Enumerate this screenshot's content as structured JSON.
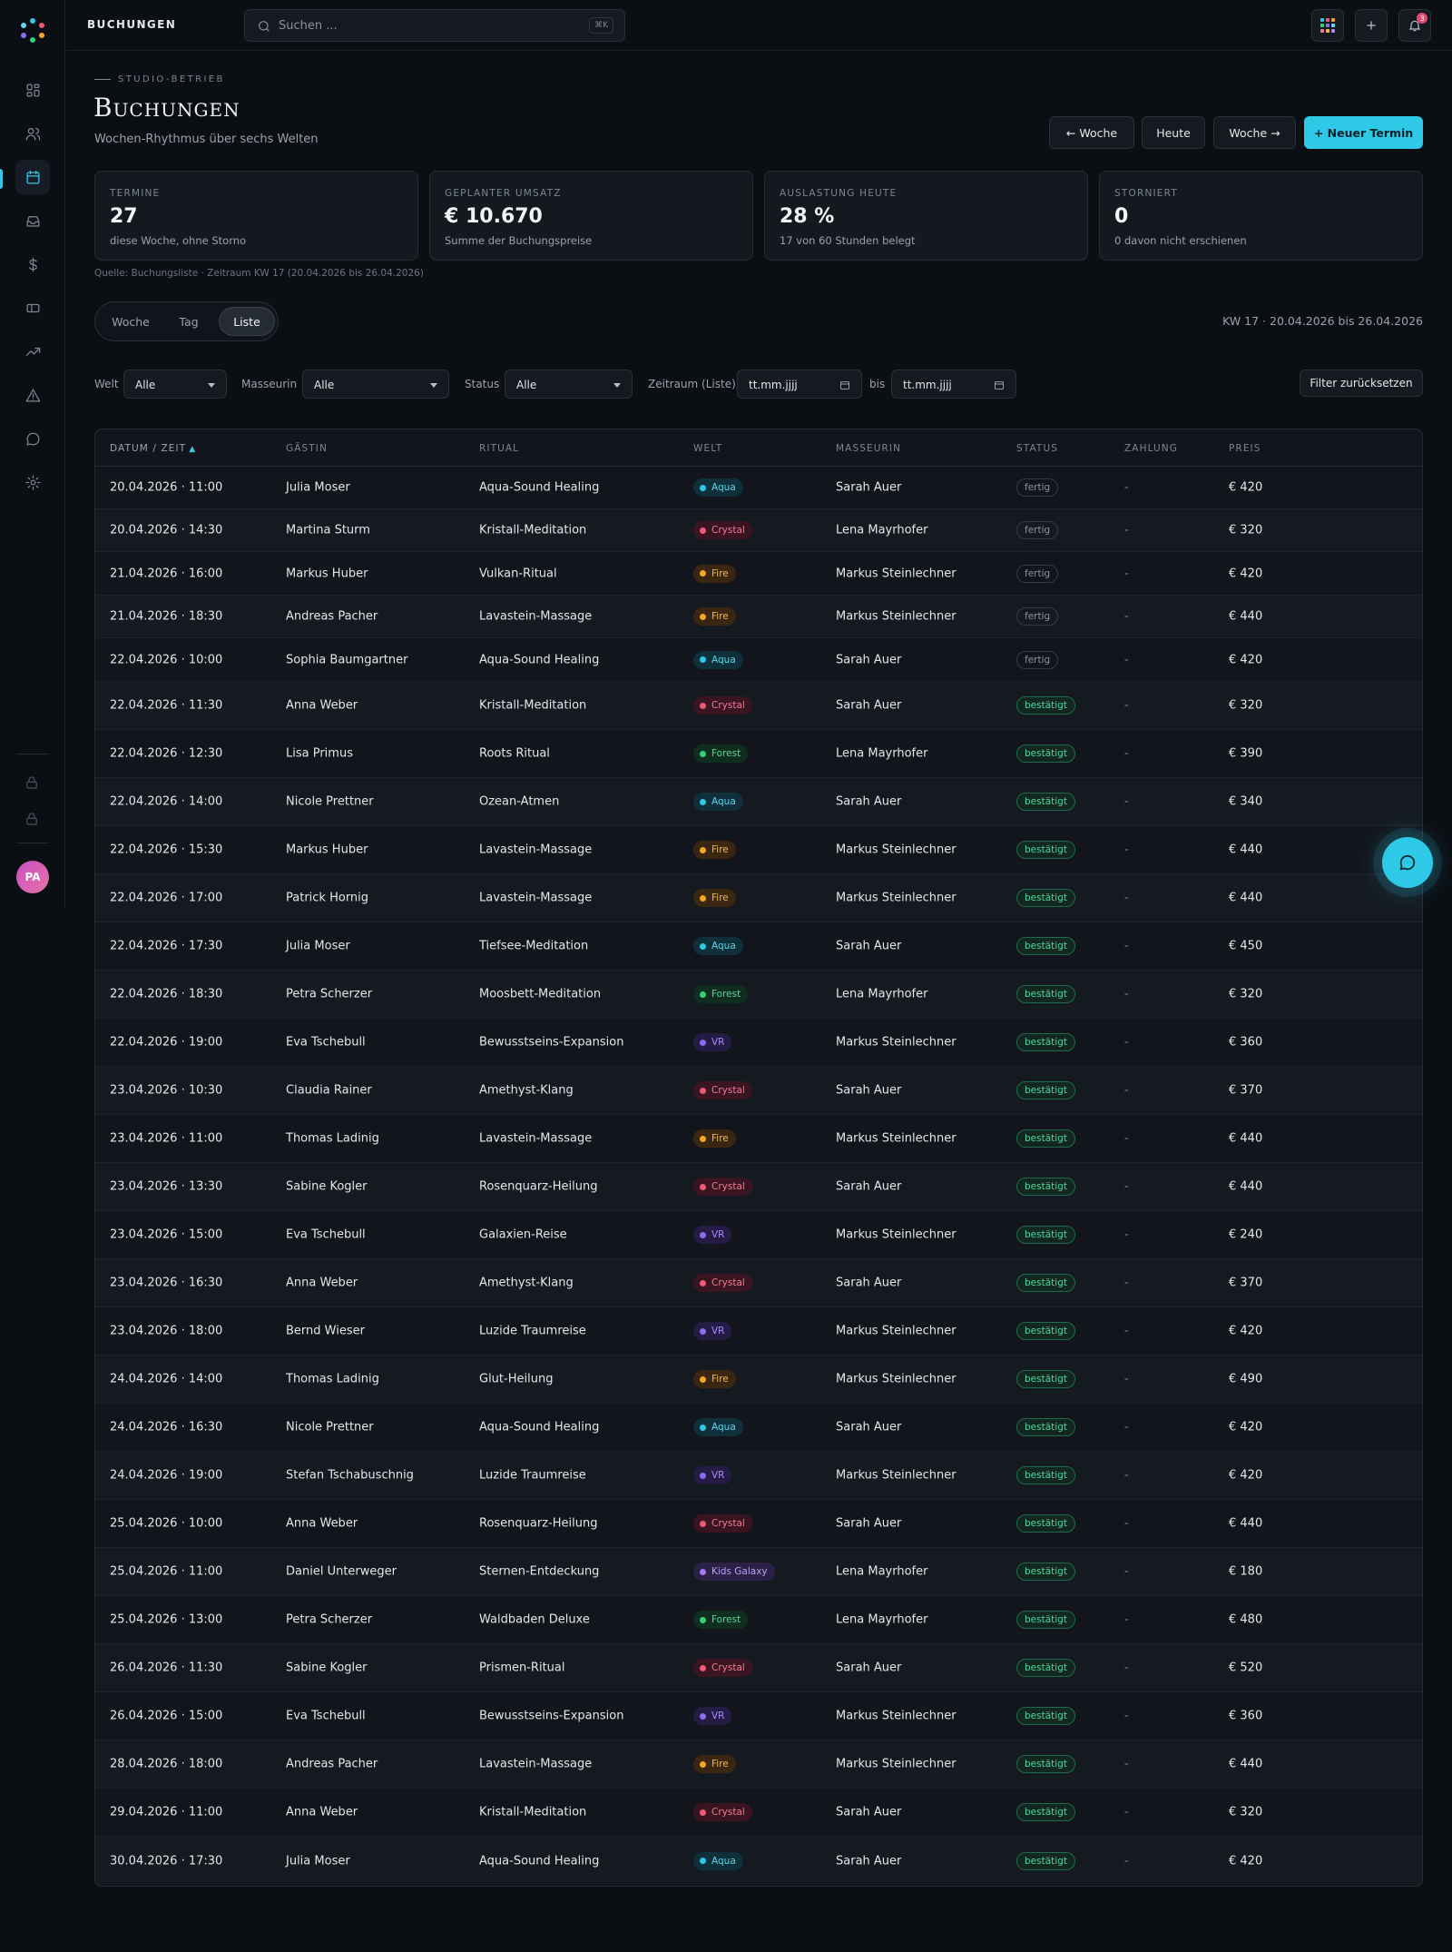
{
  "topbar": {
    "app_title": "BUCHUNGEN",
    "search_placeholder": "Suchen ...",
    "search_shortcut": "⌘K",
    "notification_count": "3"
  },
  "sidebar": {
    "items": [
      {
        "icon": "dashboard-icon"
      },
      {
        "icon": "users-icon"
      },
      {
        "icon": "calendar-icon",
        "active": true
      },
      {
        "icon": "inbox-icon"
      },
      {
        "icon": "dollar-icon"
      },
      {
        "icon": "ticket-icon"
      },
      {
        "icon": "trending-up-icon"
      },
      {
        "icon": "alert-triangle-icon"
      },
      {
        "icon": "message-circle-icon"
      },
      {
        "icon": "gear-icon"
      }
    ],
    "avatar_initials": "PA"
  },
  "header": {
    "eyebrow": "STUDIO-BETRIEB",
    "title": "Buchungen",
    "subtitle": "Wochen-Rhythmus über sechs Welten",
    "buttons": {
      "prev_week": "← Woche",
      "today": "Heute",
      "next_week": "Woche →",
      "new_appointment": "+ Neuer Termin"
    }
  },
  "kpis": [
    {
      "label": "TERMINE",
      "value": "27",
      "sub": "diese Woche, ohne Storno"
    },
    {
      "label": "GEPLANTER UMSATZ",
      "value": "€ 10.670",
      "sub": "Summe der Buchungspreise"
    },
    {
      "label": "AUSLASTUNG HEUTE",
      "value": "28 %",
      "sub": "17 von 60 Stunden belegt"
    },
    {
      "label": "STORNIERT",
      "value": "0",
      "sub": "0 davon nicht erschienen"
    }
  ],
  "source_note": "Quelle: Buchungsliste · Zeitraum KW 17 (20.04.2026 bis 26.04.2026)",
  "view_tabs": {
    "week": "Woche",
    "day": "Tag",
    "list": "Liste",
    "active": "list"
  },
  "range_label": "KW 17 · 20.04.2026 bis 26.04.2026",
  "filters": {
    "welt_label": "Welt",
    "welt_value": "Alle",
    "masseurin_label": "Masseurin",
    "masseurin_value": "Alle",
    "status_label": "Status",
    "status_value": "Alle",
    "zeitraum_label": "Zeitraum (Liste)",
    "from_value": "tt.mm.jjjj",
    "bis_label": "bis",
    "to_value": "tt.mm.jjjj",
    "reset_label": "Filter zurücksetzen"
  },
  "colors": {
    "accent": "#2ec9e6",
    "worlds": {
      "Aqua": {
        "dot": "#2ec9e6",
        "bg": "#0f2f3a",
        "fg": "#5fd8f0"
      },
      "Crystal": {
        "dot": "#f0587a",
        "bg": "#3a1521",
        "fg": "#f07a96"
      },
      "Fire": {
        "dot": "#f5a623",
        "bg": "#3a2611",
        "fg": "#f5b64a"
      },
      "Forest": {
        "dot": "#33d17a",
        "bg": "#0f2e1f",
        "fg": "#56d992"
      },
      "VR": {
        "dot": "#8b6cf0",
        "bg": "#241c44",
        "fg": "#a58df5"
      },
      "Kids Galaxy": {
        "dot": "#a57bf0",
        "bg": "#2b2046",
        "fg": "#bfa1f7"
      }
    }
  },
  "table": {
    "columns": [
      "DATUM / ZEIT",
      "GÄSTIN",
      "RITUAL",
      "WELT",
      "MASSEURIN",
      "STATUS",
      "ZAHLUNG",
      "PREIS"
    ],
    "sort_indicator": "▲",
    "rows": [
      {
        "datetime": "20.04.2026 · 11:00",
        "guest": "Julia Moser",
        "ritual": "Aqua-Sound Healing",
        "world": "Aqua",
        "therapist": "Sarah Auer",
        "status": "fertig",
        "payment": "-",
        "price": "€ 420"
      },
      {
        "datetime": "20.04.2026 · 14:30",
        "guest": "Martina Sturm",
        "ritual": "Kristall-Meditation",
        "world": "Crystal",
        "therapist": "Lena Mayrhofer",
        "status": "fertig",
        "payment": "-",
        "price": "€ 320"
      },
      {
        "datetime": "21.04.2026 · 16:00",
        "guest": "Markus Huber",
        "ritual": "Vulkan-Ritual",
        "world": "Fire",
        "therapist": "Markus Steinlechner",
        "status": "fertig",
        "payment": "-",
        "price": "€ 420"
      },
      {
        "datetime": "21.04.2026 · 18:30",
        "guest": "Andreas Pacher",
        "ritual": "Lavastein-Massage",
        "world": "Fire",
        "therapist": "Markus Steinlechner",
        "status": "fertig",
        "payment": "-",
        "price": "€ 440"
      },
      {
        "datetime": "22.04.2026 · 10:00",
        "guest": "Sophia Baumgartner",
        "ritual": "Aqua-Sound Healing",
        "world": "Aqua",
        "therapist": "Sarah Auer",
        "status": "fertig",
        "payment": "-",
        "price": "€ 420"
      },
      {
        "datetime": "22.04.2026 · 11:30",
        "guest": "Anna Weber",
        "ritual": "Kristall-Meditation",
        "world": "Crystal",
        "therapist": "Sarah Auer",
        "status": "bestätigt",
        "payment": "-",
        "price": "€ 320"
      },
      {
        "datetime": "22.04.2026 · 12:30",
        "guest": "Lisa Primus",
        "ritual": "Roots Ritual",
        "world": "Forest",
        "therapist": "Lena Mayrhofer",
        "status": "bestätigt",
        "payment": "-",
        "price": "€ 390"
      },
      {
        "datetime": "22.04.2026 · 14:00",
        "guest": "Nicole Prettner",
        "ritual": "Ozean-Atmen",
        "world": "Aqua",
        "therapist": "Sarah Auer",
        "status": "bestätigt",
        "payment": "-",
        "price": "€ 340"
      },
      {
        "datetime": "22.04.2026 · 15:30",
        "guest": "Markus Huber",
        "ritual": "Lavastein-Massage",
        "world": "Fire",
        "therapist": "Markus Steinlechner",
        "status": "bestätigt",
        "payment": "-",
        "price": "€ 440"
      },
      {
        "datetime": "22.04.2026 · 17:00",
        "guest": "Patrick Hornig",
        "ritual": "Lavastein-Massage",
        "world": "Fire",
        "therapist": "Markus Steinlechner",
        "status": "bestätigt",
        "payment": "-",
        "price": "€ 440"
      },
      {
        "datetime": "22.04.2026 · 17:30",
        "guest": "Julia Moser",
        "ritual": "Tiefsee-Meditation",
        "world": "Aqua",
        "therapist": "Sarah Auer",
        "status": "bestätigt",
        "payment": "-",
        "price": "€ 450"
      },
      {
        "datetime": "22.04.2026 · 18:30",
        "guest": "Petra Scherzer",
        "ritual": "Moosbett-Meditation",
        "world": "Forest",
        "therapist": "Lena Mayrhofer",
        "status": "bestätigt",
        "payment": "-",
        "price": "€ 320"
      },
      {
        "datetime": "22.04.2026 · 19:00",
        "guest": "Eva Tschebull",
        "ritual": "Bewusstseins-Expansion",
        "world": "VR",
        "therapist": "Markus Steinlechner",
        "status": "bestätigt",
        "payment": "-",
        "price": "€ 360"
      },
      {
        "datetime": "23.04.2026 · 10:30",
        "guest": "Claudia Rainer",
        "ritual": "Amethyst-Klang",
        "world": "Crystal",
        "therapist": "Sarah Auer",
        "status": "bestätigt",
        "payment": "-",
        "price": "€ 370"
      },
      {
        "datetime": "23.04.2026 · 11:00",
        "guest": "Thomas Ladinig",
        "ritual": "Lavastein-Massage",
        "world": "Fire",
        "therapist": "Markus Steinlechner",
        "status": "bestätigt",
        "payment": "-",
        "price": "€ 440"
      },
      {
        "datetime": "23.04.2026 · 13:30",
        "guest": "Sabine Kogler",
        "ritual": "Rosenquarz-Heilung",
        "world": "Crystal",
        "therapist": "Sarah Auer",
        "status": "bestätigt",
        "payment": "-",
        "price": "€ 440"
      },
      {
        "datetime": "23.04.2026 · 15:00",
        "guest": "Eva Tschebull",
        "ritual": "Galaxien-Reise",
        "world": "VR",
        "therapist": "Markus Steinlechner",
        "status": "bestätigt",
        "payment": "-",
        "price": "€ 240"
      },
      {
        "datetime": "23.04.2026 · 16:30",
        "guest": "Anna Weber",
        "ritual": "Amethyst-Klang",
        "world": "Crystal",
        "therapist": "Sarah Auer",
        "status": "bestätigt",
        "payment": "-",
        "price": "€ 370"
      },
      {
        "datetime": "23.04.2026 · 18:00",
        "guest": "Bernd Wieser",
        "ritual": "Luzide Traumreise",
        "world": "VR",
        "therapist": "Markus Steinlechner",
        "status": "bestätigt",
        "payment": "-",
        "price": "€ 420"
      },
      {
        "datetime": "24.04.2026 · 14:00",
        "guest": "Thomas Ladinig",
        "ritual": "Glut-Heilung",
        "world": "Fire",
        "therapist": "Markus Steinlechner",
        "status": "bestätigt",
        "payment": "-",
        "price": "€ 490"
      },
      {
        "datetime": "24.04.2026 · 16:30",
        "guest": "Nicole Prettner",
        "ritual": "Aqua-Sound Healing",
        "world": "Aqua",
        "therapist": "Sarah Auer",
        "status": "bestätigt",
        "payment": "-",
        "price": "€ 420"
      },
      {
        "datetime": "24.04.2026 · 19:00",
        "guest": "Stefan Tschabuschnig",
        "ritual": "Luzide Traumreise",
        "world": "VR",
        "therapist": "Markus Steinlechner",
        "status": "bestätigt",
        "payment": "-",
        "price": "€ 420"
      },
      {
        "datetime": "25.04.2026 · 10:00",
        "guest": "Anna Weber",
        "ritual": "Rosenquarz-Heilung",
        "world": "Crystal",
        "therapist": "Sarah Auer",
        "status": "bestätigt",
        "payment": "-",
        "price": "€ 440"
      },
      {
        "datetime": "25.04.2026 · 11:00",
        "guest": "Daniel Unterweger",
        "ritual": "Sternen-Entdeckung",
        "world": "Kids Galaxy",
        "therapist": "Lena Mayrhofer",
        "status": "bestätigt",
        "payment": "-",
        "price": "€ 180"
      },
      {
        "datetime": "25.04.2026 · 13:00",
        "guest": "Petra Scherzer",
        "ritual": "Waldbaden Deluxe",
        "world": "Forest",
        "therapist": "Lena Mayrhofer",
        "status": "bestätigt",
        "payment": "-",
        "price": "€ 480"
      },
      {
        "datetime": "26.04.2026 · 11:30",
        "guest": "Sabine Kogler",
        "ritual": "Prismen-Ritual",
        "world": "Crystal",
        "therapist": "Sarah Auer",
        "status": "bestätigt",
        "payment": "-",
        "price": "€ 520"
      },
      {
        "datetime": "26.04.2026 · 15:00",
        "guest": "Eva Tschebull",
        "ritual": "Bewusstseins-Expansion",
        "world": "VR",
        "therapist": "Markus Steinlechner",
        "status": "bestätigt",
        "payment": "-",
        "price": "€ 360"
      },
      {
        "datetime": "28.04.2026 · 18:00",
        "guest": "Andreas Pacher",
        "ritual": "Lavastein-Massage",
        "world": "Fire",
        "therapist": "Markus Steinlechner",
        "status": "bestätigt",
        "payment": "-",
        "price": "€ 440"
      },
      {
        "datetime": "29.04.2026 · 11:00",
        "guest": "Anna Weber",
        "ritual": "Kristall-Meditation",
        "world": "Crystal",
        "therapist": "Sarah Auer",
        "status": "bestätigt",
        "payment": "-",
        "price": "€ 320"
      },
      {
        "datetime": "30.04.2026 · 17:30",
        "guest": "Julia Moser",
        "ritual": "Aqua-Sound Healing",
        "world": "Aqua",
        "therapist": "Sarah Auer",
        "status": "bestätigt",
        "payment": "-",
        "price": "€ 420"
      }
    ]
  }
}
